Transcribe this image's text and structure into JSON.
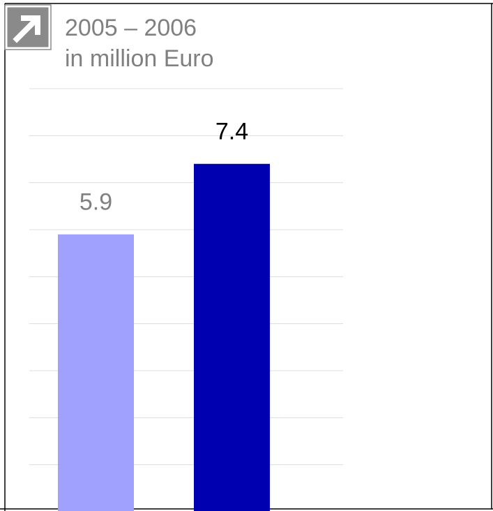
{
  "chart_data": {
    "type": "bar",
    "title": [
      "2005 – 2006",
      "in million Euro"
    ],
    "categories": [
      null,
      null
    ],
    "values": [
      5.9,
      7.4
    ],
    "colors": [
      "#a0a0ff",
      "#0000b0"
    ],
    "label_colors": [
      "#808080",
      "#000000"
    ],
    "ylim": [
      0,
      9
    ],
    "yticks": [
      1,
      2,
      3,
      4,
      5,
      6,
      7,
      8,
      9
    ],
    "grid": true
  }
}
